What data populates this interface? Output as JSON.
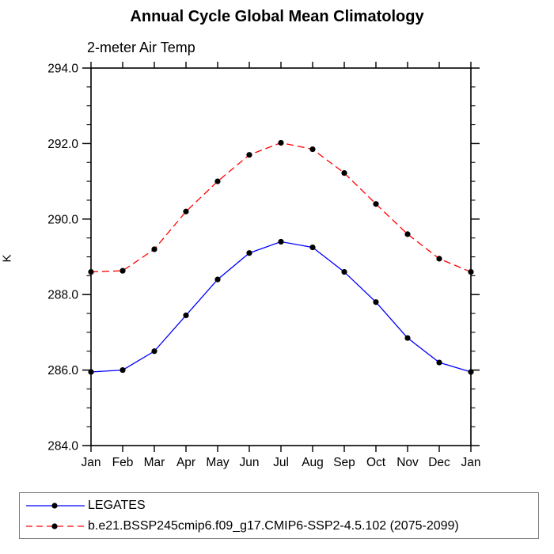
{
  "page": {
    "background": "#ffffff"
  },
  "chart_data": {
    "type": "line",
    "title": "Annual Cycle Global Mean Climatology",
    "subtitle": "2-meter Air Temp",
    "xlabel": "",
    "ylabel": "K",
    "categories": [
      "Jan",
      "Feb",
      "Mar",
      "Apr",
      "May",
      "Jun",
      "Jul",
      "Aug",
      "Sep",
      "Oct",
      "Nov",
      "Dec",
      "Jan"
    ],
    "ylim": [
      284.0,
      294.0
    ],
    "yticks_major": [
      284.0,
      286.0,
      288.0,
      290.0,
      292.0,
      294.0
    ],
    "ytick_minor_step": 0.5,
    "grid": false,
    "frame": "box-with-outward-ticks",
    "legend_position": "bottom-box",
    "axis_color": "#000000",
    "marker_color": "#000000",
    "series": [
      {
        "name": "LEGATES",
        "line_color": "#0000ff",
        "line_style": "solid",
        "marker": "filled-circle",
        "values": [
          285.95,
          286.0,
          286.5,
          287.45,
          288.4,
          289.1,
          289.4,
          289.25,
          288.6,
          287.8,
          286.85,
          286.2,
          285.95
        ]
      },
      {
        "name": "b.e21.BSSP245cmip6.f09_g17.CMIP6-SSP2-4.5.102 (2075-2099)",
        "line_color": "#ff0000",
        "line_style": "dashed",
        "marker": "filled-circle",
        "values": [
          288.6,
          288.63,
          289.2,
          290.2,
          291.0,
          291.7,
          292.02,
          291.85,
          291.22,
          290.4,
          289.6,
          288.95,
          288.6
        ]
      }
    ]
  }
}
